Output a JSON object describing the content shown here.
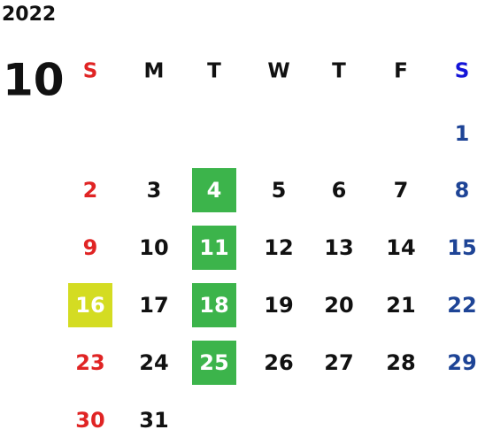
{
  "calendar": {
    "year": "2022",
    "month": "10",
    "weekdays": [
      "S",
      "M",
      "T",
      "W",
      "T",
      "F",
      "S"
    ],
    "weeks": [
      [
        null,
        null,
        null,
        null,
        null,
        null,
        {
          "label": "1"
        }
      ],
      [
        {
          "label": "2"
        },
        {
          "label": "3"
        },
        {
          "label": "4",
          "highlight": "#3cb44b"
        },
        {
          "label": "5"
        },
        {
          "label": "6"
        },
        {
          "label": "7"
        },
        {
          "label": "8"
        }
      ],
      [
        {
          "label": "9"
        },
        {
          "label": "10"
        },
        {
          "label": "11",
          "highlight": "#3cb44b"
        },
        {
          "label": "12"
        },
        {
          "label": "13"
        },
        {
          "label": "14"
        },
        {
          "label": "15"
        }
      ],
      [
        {
          "label": "16",
          "highlight": "#d4dc22"
        },
        {
          "label": "17"
        },
        {
          "label": "18",
          "highlight": "#3cb44b"
        },
        {
          "label": "19"
        },
        {
          "label": "20"
        },
        {
          "label": "21"
        },
        {
          "label": "22"
        }
      ],
      [
        {
          "label": "23"
        },
        {
          "label": "24"
        },
        {
          "label": "25",
          "highlight": "#3cb44b"
        },
        {
          "label": "26"
        },
        {
          "label": "27"
        },
        {
          "label": "28"
        },
        {
          "label": "29"
        }
      ],
      [
        {
          "label": "30"
        },
        {
          "label": "31"
        },
        null,
        null,
        null,
        null,
        null
      ]
    ]
  }
}
